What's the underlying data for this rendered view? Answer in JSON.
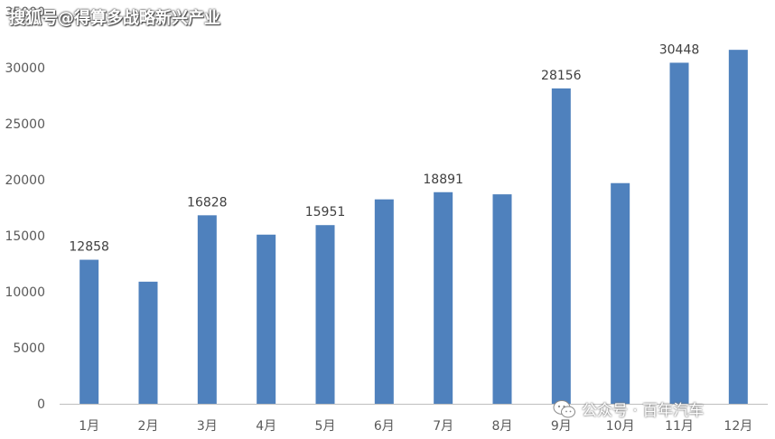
{
  "watermarks": {
    "top": "搜狐号@得算多战略新兴产业",
    "bottom": "公众号 · 百年汽车",
    "top_partial_tick": "35000"
  },
  "colors": {
    "bar": "#4F81BD",
    "axis": "#BFBFBF",
    "text": "#595959"
  },
  "chart_data": {
    "type": "bar",
    "categories": [
      "1月",
      "2月",
      "3月",
      "4月",
      "5月",
      "6月",
      "7月",
      "8月",
      "9月",
      "10月",
      "11月",
      "12月"
    ],
    "values": [
      12858,
      10900,
      16828,
      15100,
      15951,
      18250,
      18891,
      18700,
      28156,
      19700,
      30448,
      31600
    ],
    "data_labels": [
      "12858",
      "",
      "16828",
      "",
      "15951",
      "",
      "18891",
      "",
      "28156",
      "",
      "30448",
      ""
    ],
    "ylim": [
      0,
      35000
    ],
    "yticks": [
      0,
      5000,
      10000,
      15000,
      20000,
      25000,
      30000
    ],
    "title": "",
    "xlabel": "",
    "ylabel": "",
    "grid": false,
    "legend": "none"
  }
}
